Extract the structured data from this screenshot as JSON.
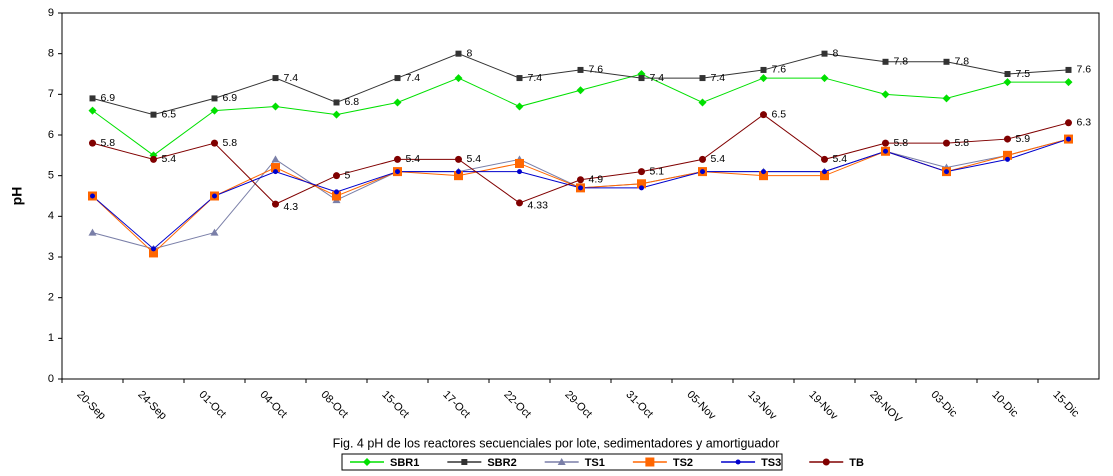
{
  "chart_data": {
    "type": "line",
    "title": "Fig. 4 pH de los reactores secuenciales por lote, sedimentadores y amortiguador",
    "y_label": "pH",
    "categories": [
      "20-Sep",
      "24-Sep",
      "01-Oct",
      "04-Oct",
      "08-Oct",
      "15-Oct",
      "17-Oct",
      "22-Oct",
      "29-Oct",
      "31-Oct",
      "05-Nov",
      "13-Nov",
      "19-Nov",
      "28-NOV",
      "03-Dic",
      "10-Dic",
      "15-Dic"
    ],
    "ylim": [
      0,
      9
    ],
    "yticks": [
      0,
      1,
      2,
      3,
      4,
      5,
      6,
      7,
      8,
      9
    ],
    "grid": false,
    "legend": "bottom",
    "series": [
      {
        "name": "SBR1",
        "color": "#00e000",
        "marker": "diamond",
        "data_labels": false,
        "values": [
          6.6,
          5.5,
          6.6,
          6.7,
          6.5,
          6.8,
          7.4,
          6.7,
          7.1,
          7.5,
          6.8,
          7.4,
          7.4,
          7.0,
          6.9,
          7.3,
          7.3
        ]
      },
      {
        "name": "SBR2",
        "color": "#333333",
        "marker": "square",
        "data_labels": true,
        "values": [
          6.9,
          6.5,
          6.9,
          7.4,
          6.8,
          7.4,
          8,
          7.4,
          7.6,
          7.4,
          7.4,
          7.6,
          8,
          7.8,
          7.8,
          7.5,
          7.6
        ]
      },
      {
        "name": "TS1",
        "color": "#7a7fa8",
        "marker": "triangle",
        "data_labels": false,
        "values": [
          3.6,
          3.2,
          3.6,
          5.4,
          4.4,
          5.1,
          5.1,
          5.4,
          4.7,
          4.8,
          5.1,
          5.1,
          5.1,
          5.6,
          5.2,
          5.5,
          5.9
        ]
      },
      {
        "name": "TS2",
        "color": "#ff6600",
        "marker": "bigsquare",
        "data_labels": false,
        "values": [
          4.5,
          3.1,
          4.5,
          5.2,
          4.5,
          5.1,
          5.0,
          5.3,
          4.7,
          4.8,
          5.1,
          5.0,
          5.0,
          5.6,
          5.1,
          5.5,
          5.9
        ]
      },
      {
        "name": "TS3",
        "color": "#0000cc",
        "marker": "dot",
        "data_labels": false,
        "values": [
          4.5,
          3.2,
          4.5,
          5.1,
          4.6,
          5.1,
          5.1,
          5.1,
          4.7,
          4.7,
          5.1,
          5.1,
          5.1,
          5.6,
          5.1,
          5.4,
          5.9
        ]
      },
      {
        "name": "TB",
        "color": "#800000",
        "marker": "circle",
        "data_labels": true,
        "values": [
          5.8,
          5.4,
          5.8,
          4.3,
          5,
          5.4,
          5.4,
          4.33,
          4.9,
          5.1,
          5.4,
          6.5,
          5.4,
          5.8,
          5.8,
          5.9,
          6.3
        ]
      }
    ]
  }
}
